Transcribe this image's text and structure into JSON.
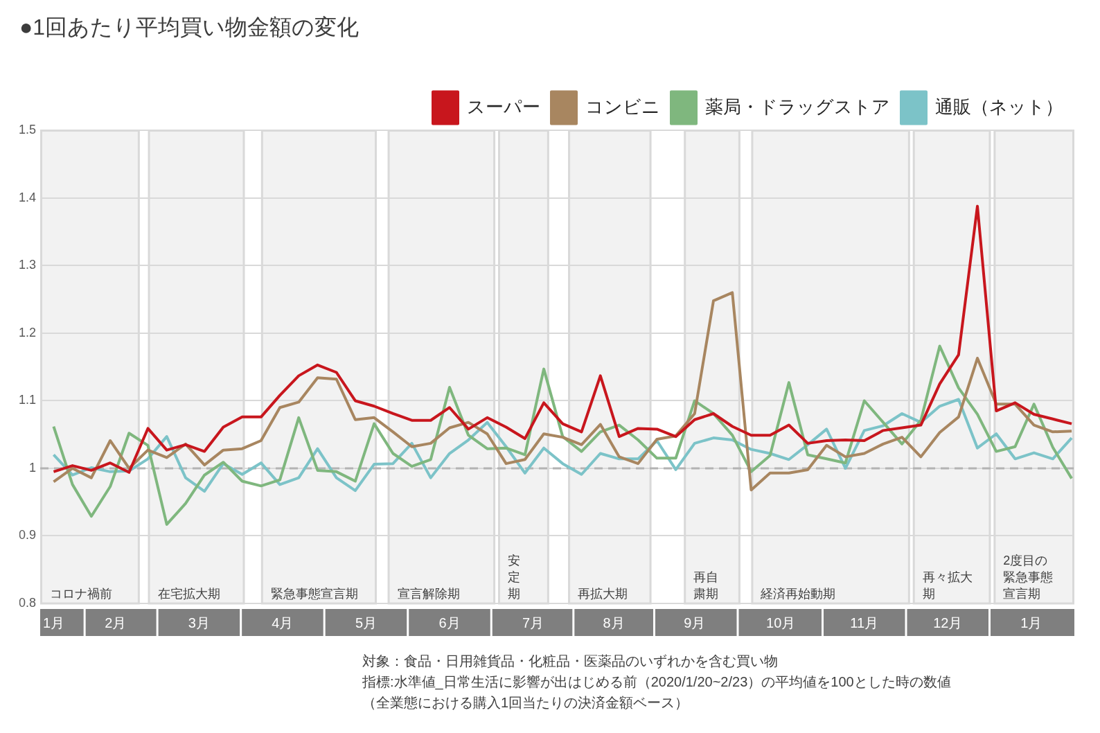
{
  "chart_data": {
    "type": "line",
    "title": "●1回あたり平均買い物金額の変化",
    "x": [
      "2020-01-19",
      "2020-01-26",
      "2020-02-02",
      "2020-02-09",
      "2020-02-16",
      "2020-02-23",
      "2020-03-01",
      "2020-03-08",
      "2020-03-15",
      "2020-03-22",
      "2020-03-29",
      "2020-04-05",
      "2020-04-12",
      "2020-04-19",
      "2020-04-26",
      "2020-05-03",
      "2020-05-10",
      "2020-05-17",
      "2020-05-24",
      "2020-05-31",
      "2020-06-07",
      "2020-06-14",
      "2020-06-21",
      "2020-06-28",
      "2020-07-05",
      "2020-07-12",
      "2020-07-19",
      "2020-07-26",
      "2020-08-02",
      "2020-08-09",
      "2020-08-16",
      "2020-08-23",
      "2020-08-30",
      "2020-09-06",
      "2020-09-13",
      "2020-09-20",
      "2020-09-27",
      "2020-10-04",
      "2020-10-11",
      "2020-10-18",
      "2020-10-25",
      "2020-11-01",
      "2020-11-08",
      "2020-11-15",
      "2020-11-22",
      "2020-11-29",
      "2020-12-06",
      "2020-12-13",
      "2020-12-20",
      "2020-12-27",
      "2021-01-03",
      "2021-01-10",
      "2021-01-17",
      "2021-01-24",
      "2021-01-31"
    ],
    "series": [
      {
        "name": "スーパー",
        "color": "#c8161d",
        "values": [
          0.995,
          1.004,
          0.997,
          1.008,
          0.994,
          1.059,
          1.027,
          1.035,
          1.025,
          1.061,
          1.076,
          1.076,
          1.108,
          1.137,
          1.153,
          1.142,
          1.1,
          1.092,
          1.081,
          1.071,
          1.071,
          1.09,
          1.058,
          1.075,
          1.061,
          1.044,
          1.097,
          1.066,
          1.054,
          1.137,
          1.047,
          1.059,
          1.058,
          1.047,
          1.072,
          1.081,
          1.062,
          1.049,
          1.049,
          1.064,
          1.037,
          1.041,
          1.042,
          1.041,
          1.056,
          1.06,
          1.064,
          1.125,
          1.168,
          1.388,
          1.085,
          1.097,
          1.08,
          1.073,
          1.066
        ]
      },
      {
        "name": "コンビニ",
        "color": "#a88660",
        "values": [
          0.98,
          1.0,
          0.986,
          1.041,
          1.0,
          1.027,
          1.016,
          1.036,
          1.005,
          1.027,
          1.029,
          1.041,
          1.09,
          1.098,
          1.134,
          1.132,
          1.072,
          1.075,
          1.054,
          1.032,
          1.037,
          1.06,
          1.068,
          1.051,
          1.007,
          1.013,
          1.051,
          1.046,
          1.035,
          1.065,
          1.017,
          1.007,
          1.043,
          1.048,
          1.081,
          1.248,
          1.26,
          0.968,
          0.993,
          0.993,
          0.998,
          1.034,
          1.017,
          1.022,
          1.036,
          1.046,
          1.017,
          1.053,
          1.076,
          1.163,
          1.095,
          1.095,
          1.064,
          1.054,
          1.055
        ]
      },
      {
        "name": "薬局・ドラッグストア",
        "color": "#7fb77e",
        "values": [
          1.062,
          0.976,
          0.929,
          0.973,
          1.052,
          1.034,
          0.917,
          0.948,
          0.99,
          1.009,
          0.981,
          0.974,
          0.983,
          1.075,
          0.997,
          0.995,
          0.981,
          1.066,
          1.022,
          1.003,
          1.013,
          1.12,
          1.049,
          1.029,
          1.03,
          1.02,
          1.147,
          1.047,
          1.025,
          1.054,
          1.064,
          1.042,
          1.015,
          1.015,
          1.1,
          1.081,
          1.049,
          0.995,
          1.019,
          1.127,
          1.02,
          1.014,
          1.008,
          1.1,
          1.068,
          1.036,
          1.071,
          1.181,
          1.119,
          1.08,
          1.025,
          1.032,
          1.095,
          1.031,
          0.985
        ]
      },
      {
        "name": "通販（ネット）",
        "color": "#7cc3c8",
        "values": [
          1.02,
          0.99,
          1.001,
          0.995,
          0.996,
          1.014,
          1.047,
          0.986,
          0.966,
          1.007,
          0.991,
          1.008,
          0.976,
          0.986,
          1.029,
          0.986,
          0.967,
          1.006,
          1.007,
          1.037,
          0.986,
          1.022,
          1.042,
          1.068,
          1.032,
          0.993,
          1.03,
          1.007,
          0.991,
          1.022,
          1.014,
          1.014,
          1.041,
          0.998,
          1.037,
          1.045,
          1.042,
          1.028,
          1.022,
          1.013,
          1.035,
          1.058,
          1.0,
          1.056,
          1.063,
          1.081,
          1.068,
          1.092,
          1.102,
          1.03,
          1.051,
          1.014,
          1.023,
          1.014,
          1.045
        ]
      }
    ],
    "xlim": [
      "2020-01-14",
      "2021-02-01"
    ],
    "xticks": [
      {
        "value": "2020-01-19",
        "label": "1月"
      },
      {
        "value": "2020-02-11",
        "label": "2月"
      },
      {
        "value": "2020-03-13",
        "label": "3月"
      },
      {
        "value": "2020-04-13",
        "label": "4月"
      },
      {
        "value": "2020-05-14",
        "label": "5月"
      },
      {
        "value": "2020-06-14",
        "label": "6月"
      },
      {
        "value": "2020-07-15",
        "label": "7月"
      },
      {
        "value": "2020-08-14",
        "label": "8月"
      },
      {
        "value": "2020-09-13",
        "label": "9月"
      },
      {
        "value": "2020-10-15",
        "label": "10月"
      },
      {
        "value": "2020-11-15",
        "label": "11月"
      },
      {
        "value": "2020-12-16",
        "label": "12月"
      },
      {
        "value": "2021-01-16",
        "label": "1月"
      }
    ],
    "ylim": [
      0.8,
      1.5
    ],
    "yticks": [
      0.8,
      0.9,
      1,
      1.1,
      1.2,
      1.3,
      1.4,
      1.5
    ],
    "grid": "y",
    "legend": "top right",
    "marker": "none",
    "line_style": "solid",
    "ref_lines": [
      {
        "axis": "y",
        "value": 1,
        "color": "#b3b3b3",
        "line_style": "dashed"
      }
    ],
    "bands": [
      {
        "axis": "x",
        "from": "2020-01-14",
        "to": "2020-02-20",
        "label": "コロナ禍前"
      },
      {
        "axis": "x",
        "from": "2020-02-23",
        "to": "2020-03-30",
        "label": "在宅拡大期"
      },
      {
        "axis": "x",
        "from": "2020-04-05",
        "to": "2020-05-18",
        "label": "緊急事態宣言期"
      },
      {
        "axis": "x",
        "from": "2020-05-22",
        "to": "2020-07-01",
        "label": "宣言解除期"
      },
      {
        "axis": "x",
        "from": "2020-07-02",
        "to": "2020-07-21",
        "label": "安定期"
      },
      {
        "axis": "x",
        "from": "2020-07-28",
        "to": "2020-08-28",
        "label": "再拡大期"
      },
      {
        "axis": "x",
        "from": "2020-09-09",
        "to": "2020-09-30",
        "label": "再自粛期"
      },
      {
        "axis": "x",
        "from": "2020-10-04",
        "to": "2020-12-02",
        "label": "経済再始動期"
      },
      {
        "axis": "x",
        "from": "2020-12-03",
        "to": "2021-01-01",
        "label": "再々拡大期"
      },
      {
        "axis": "x",
        "from": "2021-01-02",
        "to": "2021-02-01",
        "label": "2度目の緊急事態宣言期"
      }
    ],
    "annotations": [
      "対象：食品・日用雑貨品・化粧品・医薬品のいずれかを含む買い物",
      "指標:水準値_日常生活に影響が出はじめる前（2020/1/20~2/23）の平均値を100とした時の数値",
      "（全業態における購入1回当たりの決済金額ベース）"
    ]
  }
}
